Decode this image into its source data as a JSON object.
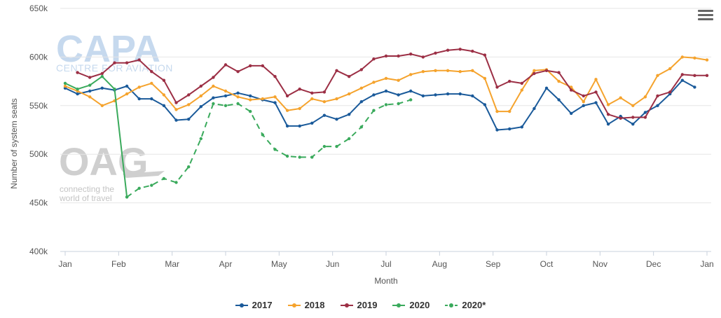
{
  "chart_data": {
    "type": "line",
    "xlabel": "Month",
    "ylabel": "Number of system seats",
    "x_ticks": [
      "Jan",
      "Feb",
      "Mar",
      "Apr",
      "May",
      "Jun",
      "Jul",
      "Aug",
      "Sep",
      "Oct",
      "Nov",
      "Dec",
      "Jan"
    ],
    "ylim": [
      400000,
      650000
    ],
    "y_ticks": [
      400000,
      450000,
      500000,
      550000,
      600000,
      650000
    ],
    "y_tick_labels": [
      "400k",
      "450k",
      "500k",
      "550k",
      "600k",
      "650k"
    ],
    "grid": "horizontal",
    "legend_position": "bottom",
    "series": [
      {
        "name": "2017",
        "color": "#1a5a9a",
        "dashed": false,
        "values": [
          568,
          562,
          565,
          568,
          566,
          570,
          557,
          557,
          550,
          535,
          536,
          549,
          558,
          560,
          563,
          560,
          556,
          553,
          529,
          529,
          532,
          540,
          536,
          541,
          554,
          561,
          565,
          561,
          565,
          560,
          561,
          562,
          562,
          560,
          551,
          525,
          526,
          528,
          547,
          568,
          556,
          542,
          550,
          553,
          531,
          539,
          531,
          543,
          550,
          562,
          576,
          569
        ]
      },
      {
        "name": "2018",
        "color": "#f5a32d",
        "dashed": false,
        "values": [
          570,
          565,
          559,
          550,
          555,
          562,
          569,
          573,
          561,
          546,
          551,
          560,
          570,
          565,
          559,
          556,
          557,
          559,
          545,
          547,
          557,
          554,
          557,
          562,
          568,
          574,
          578,
          576,
          582,
          585,
          586,
          586,
          585,
          586,
          578,
          544,
          544,
          566,
          586,
          587,
          575,
          569,
          554,
          577,
          551,
          558,
          550,
          559,
          581,
          588,
          600,
          599,
          597
        ]
      },
      {
        "name": "2019",
        "color": "#9c2f45",
        "dashed": false,
        "values": [
          584,
          579,
          583,
          594,
          594,
          597,
          585,
          576,
          553,
          561,
          570,
          579,
          592,
          585,
          591,
          591,
          580,
          560,
          567,
          563,
          564,
          586,
          580,
          587,
          598,
          601,
          601,
          603,
          600,
          604,
          607,
          608,
          606,
          602,
          569,
          575,
          573,
          583,
          586,
          584,
          566,
          560,
          564,
          541,
          537,
          538,
          538,
          560,
          564,
          582,
          581,
          581
        ]
      },
      {
        "name": "2020",
        "color": "#3aaa5c",
        "dashed": false,
        "values": [
          573,
          567,
          571,
          580,
          567,
          456
        ]
      },
      {
        "name": "2020*",
        "color": "#3aaa5c",
        "dashed": true,
        "values": [
          456,
          465,
          468,
          475,
          471,
          487,
          516,
          552,
          550,
          552,
          544,
          520,
          505,
          498,
          497,
          497,
          508,
          508,
          516,
          528,
          545,
          551,
          552,
          556
        ]
      }
    ]
  },
  "watermark": {
    "capa_title": "CAPA",
    "capa_subtitle": "CENTRE FOR AVIATION",
    "oag_title": "OAG",
    "oag_tagline_1": "connecting the",
    "oag_tagline_2": "world of travel"
  },
  "menu_icon": "hamburger-menu-icon"
}
